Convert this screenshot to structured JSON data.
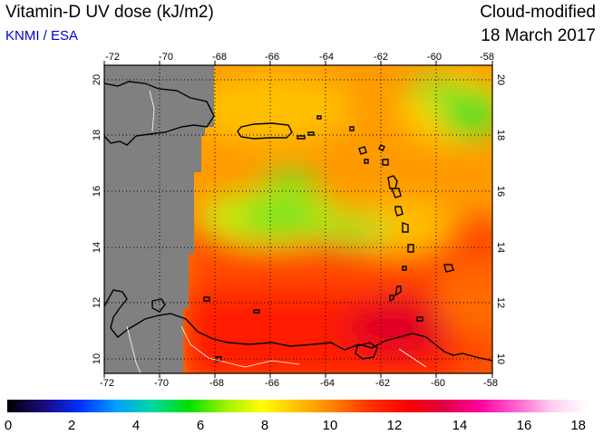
{
  "header": {
    "title": "Vitamin-D UV dose (kJ/m2)",
    "credit": "KNMI / ESA",
    "mode": "Cloud-modified",
    "date": "18 March 2017"
  },
  "map": {
    "lon_range": [
      -72,
      -58
    ],
    "lat_range": [
      9.5,
      20.5
    ],
    "lon_ticks": [
      "-72",
      "-70",
      "-68",
      "-66",
      "-64",
      "-62",
      "-60",
      "-58"
    ],
    "lat_ticks": [
      "10",
      "12",
      "14",
      "16",
      "18",
      "20"
    ],
    "grid": true,
    "no_data_color": "#808080",
    "coastline_color": "#000000",
    "border_color": "#ffffff"
  },
  "colorbar": {
    "range": [
      0,
      18
    ],
    "ticks": [
      "0",
      "2",
      "4",
      "6",
      "8",
      "10",
      "12",
      "14",
      "16",
      "18"
    ],
    "colors": [
      "#000000",
      "#1a0a80",
      "#0030ff",
      "#00a0ff",
      "#00d8a0",
      "#00e000",
      "#a0f000",
      "#ffff00",
      "#ffc000",
      "#ff8000",
      "#ff3000",
      "#ff0000",
      "#e00040",
      "#ff00a0",
      "#ff60d0",
      "#ffd0f0",
      "#ffffff"
    ]
  }
}
